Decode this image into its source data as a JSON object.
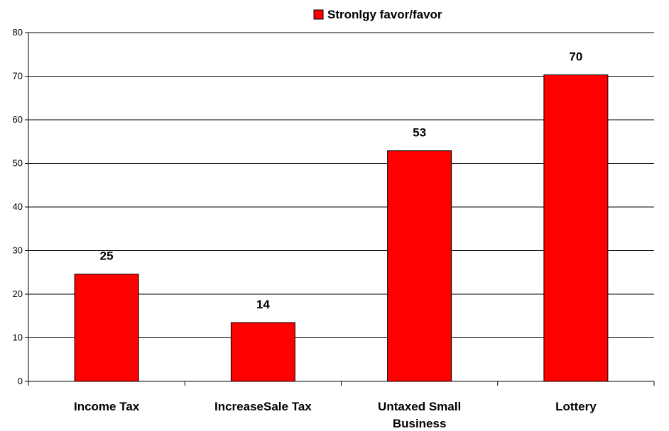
{
  "chart_data": {
    "type": "bar",
    "categories": [
      [
        "Income Tax"
      ],
      [
        "IncreaseSale Tax"
      ],
      [
        "Untaxed Small",
        "Business"
      ],
      [
        "Lottery"
      ]
    ],
    "series": [
      {
        "name": "Stronlgy favor/favor",
        "values": [
          25,
          14,
          53,
          70
        ],
        "color": "#ff0000"
      }
    ],
    "data_labels": [
      "25",
      "14",
      "53",
      "70"
    ],
    "bar_values_exact": [
      24.6,
      13.5,
      52.9,
      70.3
    ],
    "ylim": [
      0,
      80
    ],
    "yticks": [
      0,
      10,
      20,
      30,
      40,
      50,
      60,
      70,
      80
    ],
    "grid": true,
    "legend_position": "top-center",
    "xlabel": "",
    "ylabel": ""
  }
}
